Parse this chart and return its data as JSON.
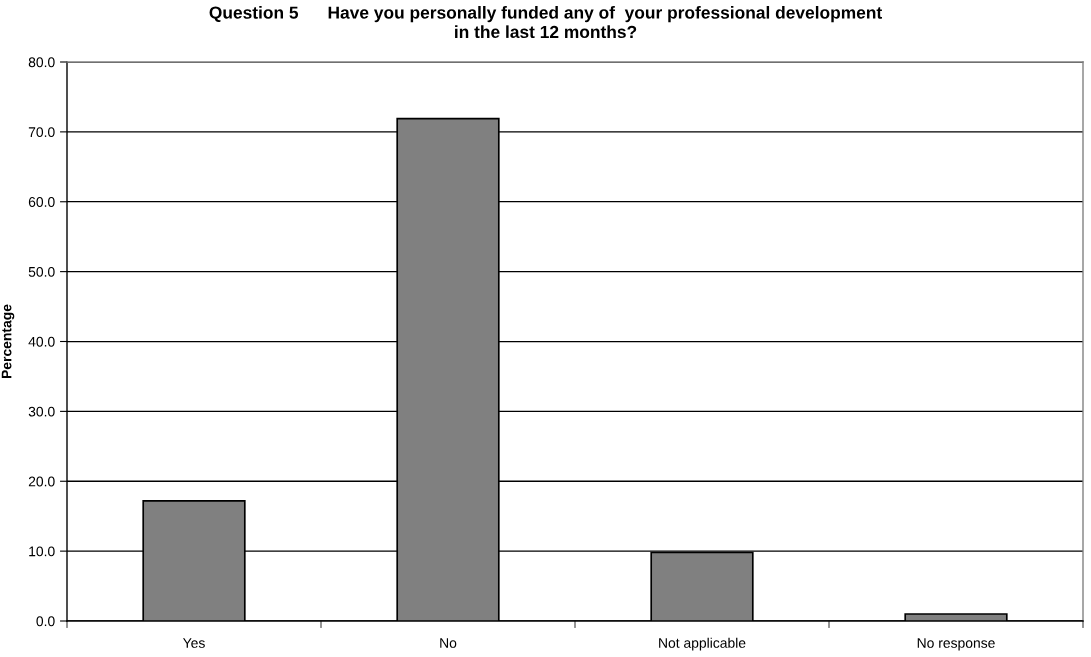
{
  "chart_data": {
    "type": "bar",
    "title": "Question 5      Have you personally funded any of  your professional development\nin the last 12 months?",
    "ylabel": "Percentage",
    "categories": [
      "Yes",
      "No",
      "Not applicable",
      "No response"
    ],
    "values": [
      17.2,
      71.9,
      9.8,
      1.0
    ],
    "color": "#808080",
    "ylim": [
      0,
      80
    ],
    "yticks": [
      {
        "value": 0,
        "label": "0.0"
      },
      {
        "value": 10,
        "label": "10.0"
      },
      {
        "value": 20,
        "label": "20.0"
      },
      {
        "value": 30,
        "label": "30.0"
      },
      {
        "value": 40,
        "label": "40.0"
      },
      {
        "value": 50,
        "label": "50.0"
      },
      {
        "value": 60,
        "label": "60.0"
      },
      {
        "value": 70,
        "label": "70.0"
      },
      {
        "value": 80,
        "label": "80.0"
      }
    ],
    "grid": "y",
    "legend": false
  }
}
